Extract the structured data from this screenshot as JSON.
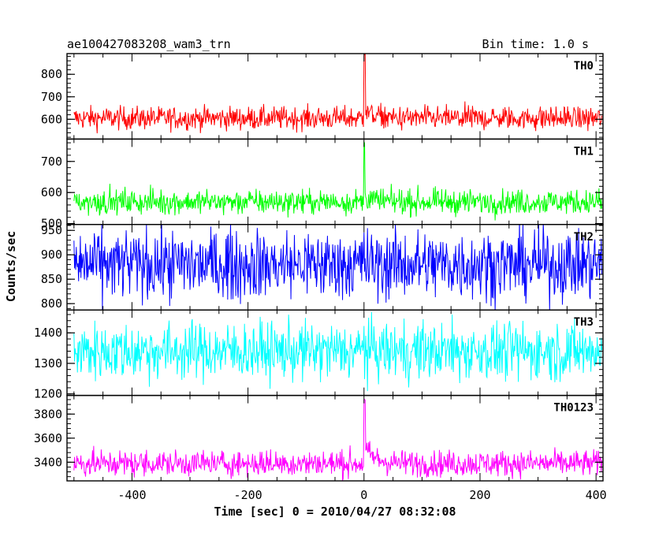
{
  "chart_data": {
    "type": "line",
    "title_left": "ae100427083208_wam3_trn",
    "title_right": "Bin time: 1.0 s",
    "xlabel": "Time [sec] 0 = 2010/04/27 08:32:08",
    "ylabel": "Counts/sec",
    "xlim": [
      -512,
      412
    ],
    "x_data_range": [
      -500,
      410
    ],
    "x_ticks": [
      -400,
      -200,
      0,
      200,
      400
    ],
    "grid": false,
    "series": [
      {
        "name": "TH0",
        "color": "#ff0000",
        "ylim": [
          512,
          892
        ],
        "y_ticks": [
          600,
          700,
          800
        ],
        "baseline": 605,
        "noise": 26,
        "spike_peak": 895,
        "spike_width": 3,
        "tail_level": 35,
        "tail_decay": 15
      },
      {
        "name": "TH1",
        "color": "#00ff00",
        "ylim": [
          497,
          772
        ],
        "y_ticks": [
          500,
          600,
          700
        ],
        "baseline": 570,
        "noise": 20,
        "spike_peak": 765,
        "spike_width": 2,
        "tail_level": 20,
        "tail_decay": 12
      },
      {
        "name": "TH2",
        "color": "#0000ff",
        "ylim": [
          787,
          962
        ],
        "y_ticks": [
          800,
          850,
          900,
          950
        ],
        "baseline": 880,
        "noise": 36,
        "spike_peak": 955,
        "spike_width": 1,
        "tail_level": 0,
        "tail_decay": 1
      },
      {
        "name": "TH3",
        "color": "#00ffff",
        "ylim": [
          1195,
          1475
        ],
        "y_ticks": [
          1200,
          1300,
          1400
        ],
        "baseline": 1340,
        "noise": 48,
        "spike_peak": 1440,
        "spike_width": 1,
        "tail_level": 0,
        "tail_decay": 1
      },
      {
        "name": "TH0123",
        "color": "#ff00ff",
        "ylim": [
          3245,
          3955
        ],
        "y_ticks": [
          3400,
          3600,
          3800
        ],
        "baseline": 3390,
        "noise": 55,
        "spike_peak": 3940,
        "spike_width": 3,
        "tail_level": 110,
        "tail_decay": 18
      }
    ]
  }
}
